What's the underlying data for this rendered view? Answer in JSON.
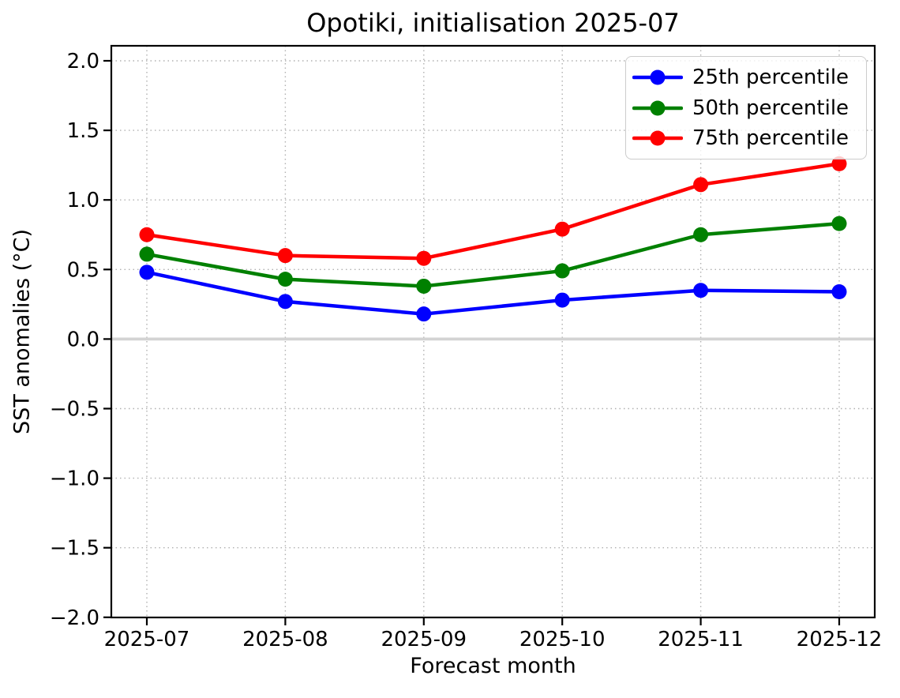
{
  "chart_data": {
    "type": "line",
    "title": "Opotiki, initialisation 2025-07",
    "xlabel": "Forecast month",
    "ylabel": "SST anomalies (°C)",
    "categories": [
      "2025-07",
      "2025-08",
      "2025-09",
      "2025-10",
      "2025-11",
      "2025-12"
    ],
    "series": [
      {
        "name": "25th percentile",
        "color": "#0000ff",
        "values": [
          0.48,
          0.27,
          0.18,
          0.28,
          0.35,
          0.34
        ]
      },
      {
        "name": "50th percentile",
        "color": "#008000",
        "values": [
          0.61,
          0.43,
          0.38,
          0.49,
          0.75,
          0.83
        ]
      },
      {
        "name": "75th percentile",
        "color": "#ff0000",
        "values": [
          0.75,
          0.6,
          0.58,
          0.79,
          1.11,
          1.26
        ]
      }
    ],
    "ylim": [
      -2.0,
      2.0
    ],
    "yticks": [
      2.0,
      1.5,
      1.0,
      0.5,
      0.0,
      -0.5,
      -1.0,
      -1.5,
      -2.0
    ],
    "grid": {
      "style": "dotted",
      "color": "#b0b0b0"
    },
    "zero_line": {
      "value": 0.0,
      "color": "#d3d3d3"
    },
    "legend": {
      "position": "upper right"
    },
    "axis_color": "#000000"
  }
}
